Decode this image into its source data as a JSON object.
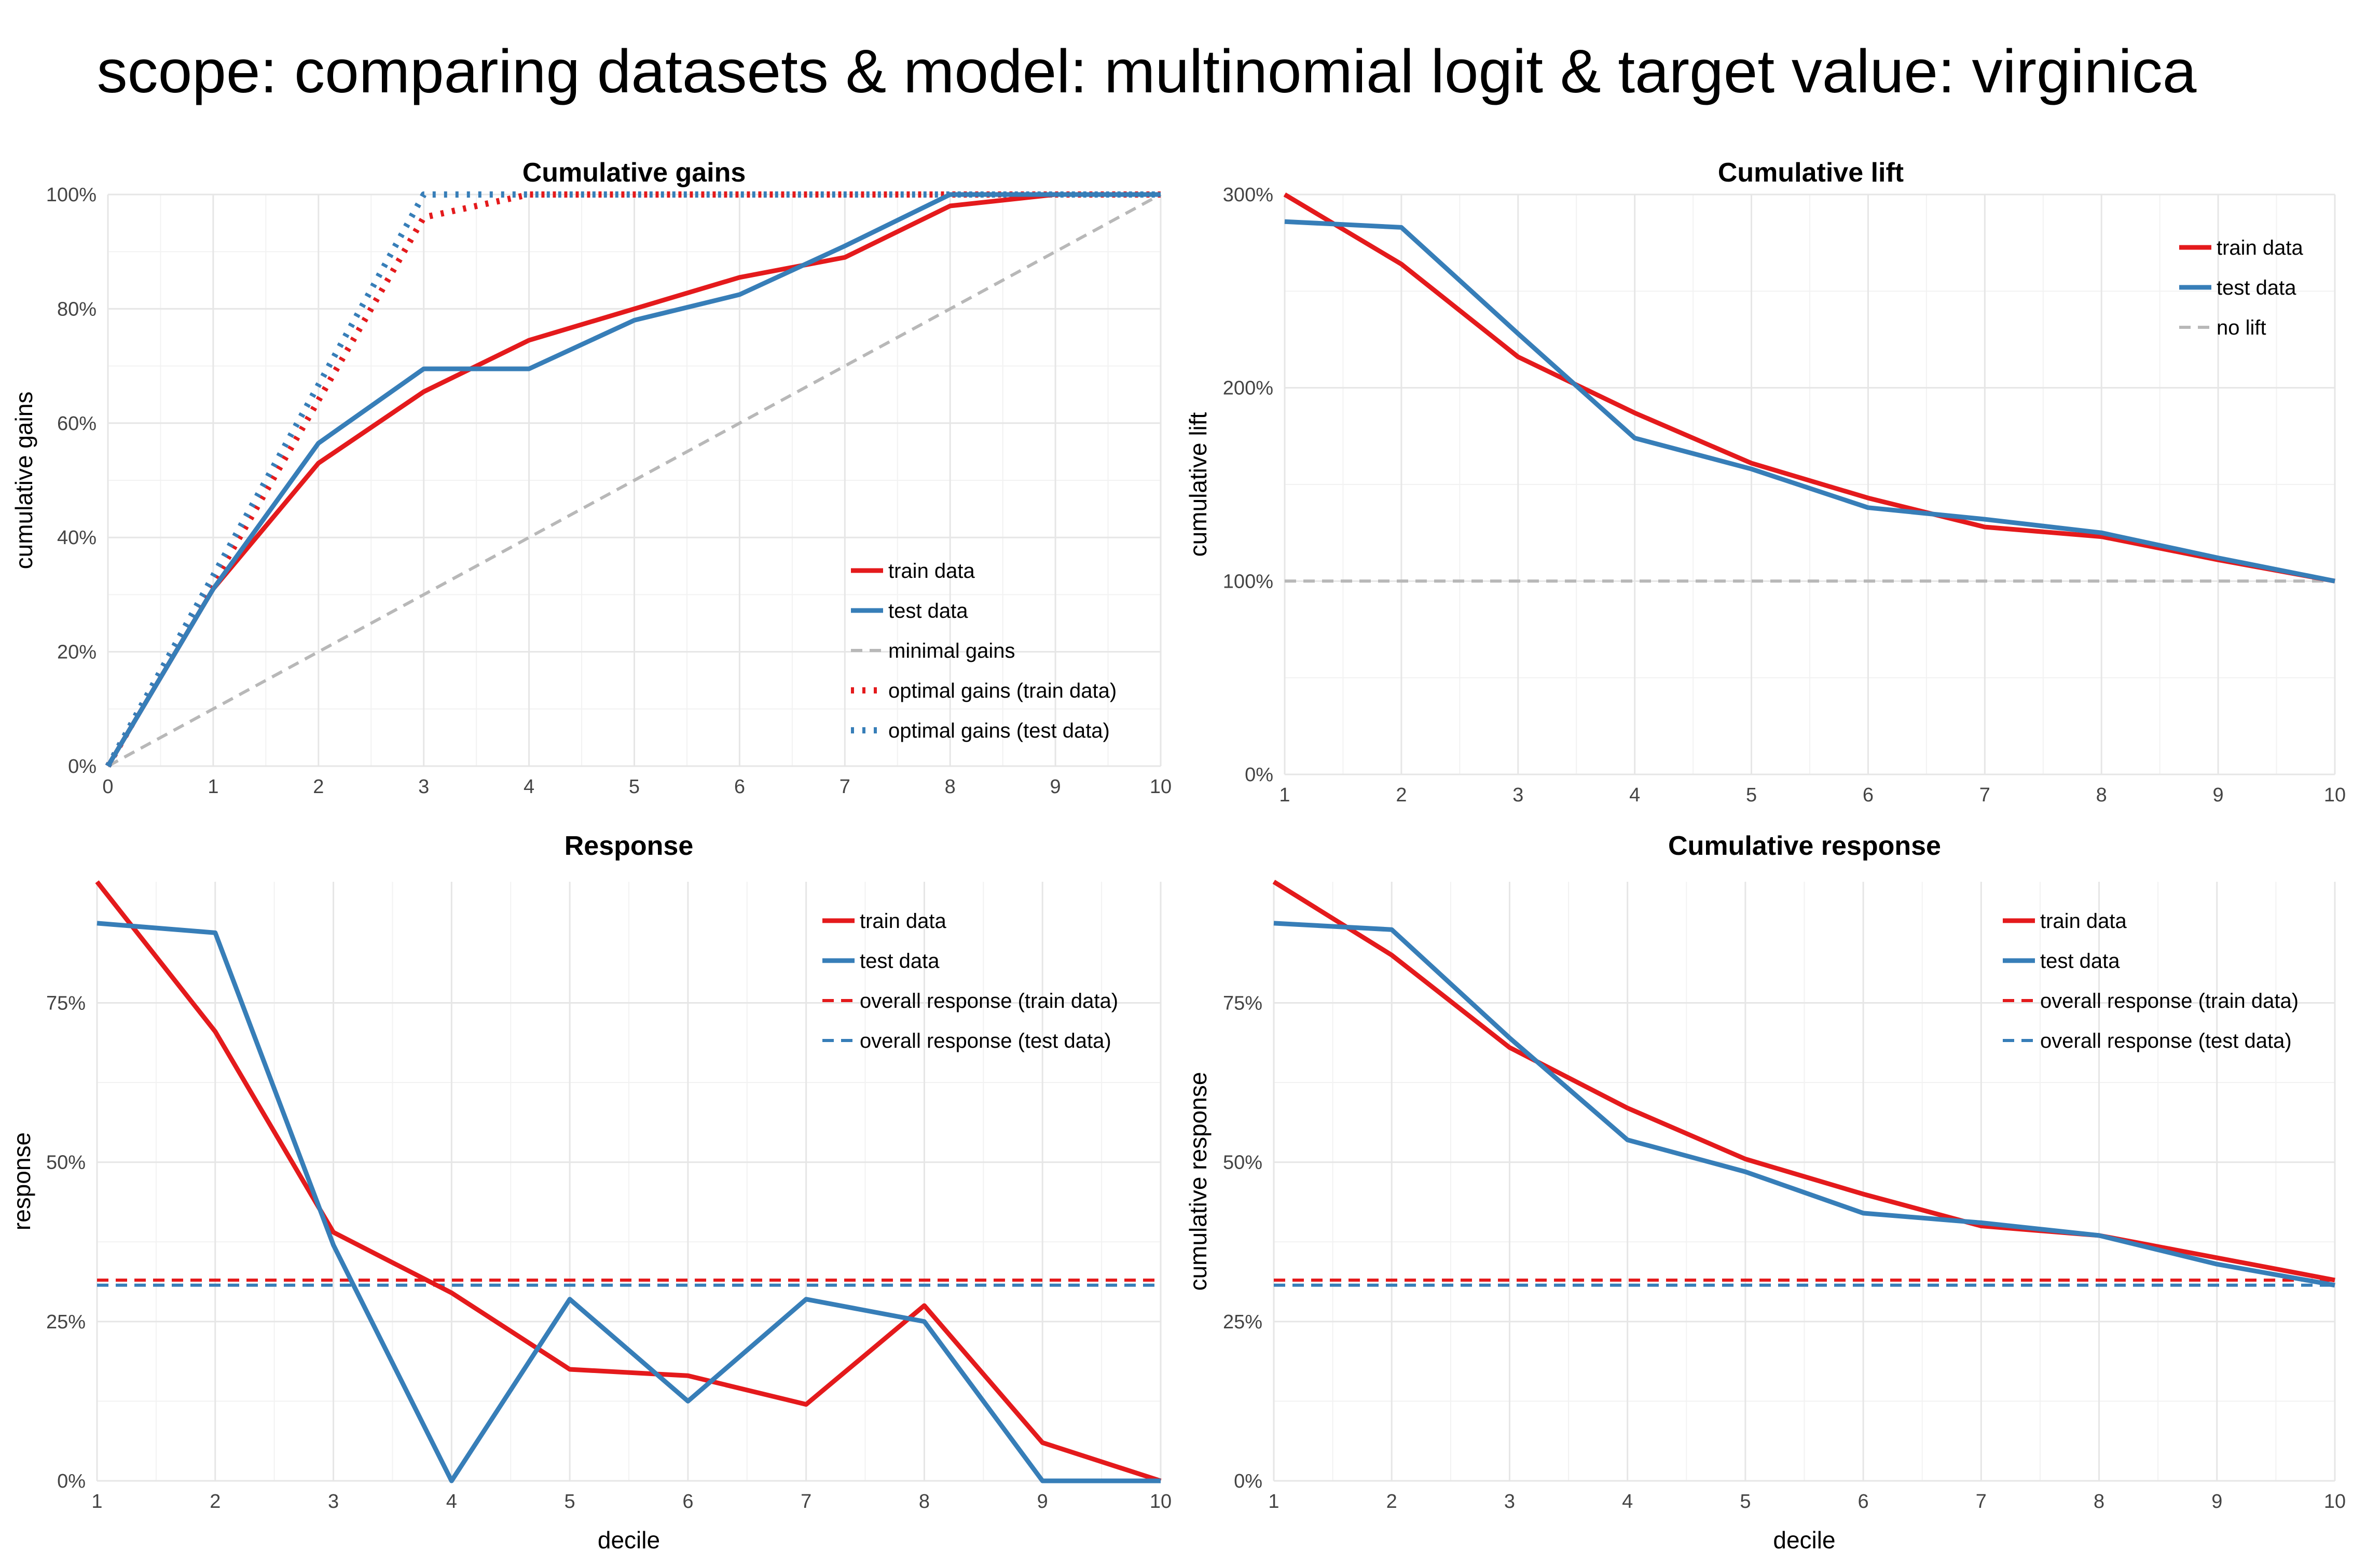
{
  "title": "scope: comparing datasets & model: multinomial logit & target value: virginica",
  "colors": {
    "train": "#e41a1c",
    "test": "#377eb8",
    "reference": "#b8b8b8"
  },
  "chart_data": [
    {
      "type": "line",
      "id": "gains",
      "title": "Cumulative gains",
      "xlabel": "",
      "ylabel": "cumulative gains",
      "xlim": [
        0,
        10
      ],
      "ylim": [
        0,
        1
      ],
      "x_ticks": [
        0,
        1,
        2,
        3,
        4,
        5,
        6,
        7,
        8,
        9,
        10
      ],
      "x_tick_labels": [
        "0",
        "1",
        "2",
        "3",
        "4",
        "5",
        "6",
        "7",
        "8",
        "9",
        "10"
      ],
      "y_ticks": [
        0,
        0.2,
        0.4,
        0.6,
        0.8,
        1.0
      ],
      "y_tick_labels": [
        "0%",
        "20%",
        "40%",
        "60%",
        "80%",
        "100%"
      ],
      "legend_position": "bottom-right",
      "series": [
        {
          "name": "train data",
          "style": "solid",
          "color": "train",
          "x": [
            0,
            1,
            2,
            3,
            4,
            5,
            6,
            7,
            8,
            9,
            10
          ],
          "y": [
            0,
            0.31,
            0.53,
            0.655,
            0.745,
            0.8,
            0.855,
            0.89,
            0.98,
            1.0,
            1.0
          ]
        },
        {
          "name": "test data",
          "style": "solid",
          "color": "test",
          "x": [
            0,
            1,
            2,
            3,
            4,
            5,
            6,
            7,
            8,
            9,
            10
          ],
          "y": [
            0,
            0.31,
            0.565,
            0.695,
            0.695,
            0.78,
            0.825,
            0.91,
            1.0,
            1.0,
            1.0
          ]
        },
        {
          "name": "minimal gains",
          "style": "dashed",
          "color": "reference",
          "x": [
            0,
            10
          ],
          "y": [
            0,
            1
          ]
        },
        {
          "name": "optimal gains (train data)",
          "style": "dotted",
          "color": "train",
          "x": [
            0,
            1,
            2,
            3,
            4,
            5,
            6,
            7,
            8,
            9,
            10
          ],
          "y": [
            0,
            0.32,
            0.64,
            0.96,
            1.0,
            1.0,
            1.0,
            1.0,
            1.0,
            1.0,
            1.0
          ]
        },
        {
          "name": "optimal gains (test data)",
          "style": "dotted",
          "color": "test",
          "x": [
            0,
            1,
            2,
            3,
            4,
            5,
            6,
            7,
            8,
            9,
            10
          ],
          "y": [
            0,
            0.333,
            0.667,
            1.0,
            1.0,
            1.0,
            1.0,
            1.0,
            1.0,
            1.0,
            1.0
          ]
        }
      ]
    },
    {
      "type": "line",
      "id": "lift",
      "title": "Cumulative lift",
      "xlabel": "",
      "ylabel": "cumulative lift",
      "xlim": [
        1,
        10
      ],
      "ylim": [
        0,
        3
      ],
      "x_ticks": [
        1,
        2,
        3,
        4,
        5,
        6,
        7,
        8,
        9,
        10
      ],
      "x_tick_labels": [
        "1",
        "2",
        "3",
        "4",
        "5",
        "6",
        "7",
        "8",
        "9",
        "10"
      ],
      "y_ticks": [
        0,
        1,
        2,
        3
      ],
      "y_tick_labels": [
        "0%",
        "100%",
        "200%",
        "300%"
      ],
      "legend_position": "top-right",
      "series": [
        {
          "name": "train data",
          "style": "solid",
          "color": "train",
          "x": [
            1,
            2,
            3,
            4,
            5,
            6,
            7,
            8,
            9,
            10
          ],
          "y": [
            3.0,
            2.64,
            2.16,
            1.87,
            1.61,
            1.43,
            1.28,
            1.23,
            1.11,
            1.0
          ]
        },
        {
          "name": "test data",
          "style": "solid",
          "color": "test",
          "x": [
            1,
            2,
            3,
            4,
            5,
            6,
            7,
            8,
            9,
            10
          ],
          "y": [
            2.86,
            2.83,
            2.28,
            1.74,
            1.58,
            1.38,
            1.32,
            1.25,
            1.12,
            1.0
          ]
        },
        {
          "name": "no lift",
          "style": "dashed",
          "color": "reference",
          "x": [
            1,
            10
          ],
          "y": [
            1,
            1
          ]
        }
      ]
    },
    {
      "type": "line",
      "id": "response",
      "title": "Response",
      "xlabel": "decile",
      "ylabel": "response",
      "xlim": [
        1,
        10
      ],
      "ylim": [
        0,
        0.94
      ],
      "x_ticks": [
        1,
        2,
        3,
        4,
        5,
        6,
        7,
        8,
        9,
        10
      ],
      "x_tick_labels": [
        "1",
        "2",
        "3",
        "4",
        "5",
        "6",
        "7",
        "8",
        "9",
        "10"
      ],
      "y_ticks": [
        0,
        0.25,
        0.5,
        0.75
      ],
      "y_tick_labels": [
        "0%",
        "25%",
        "50%",
        "75%"
      ],
      "legend_position": "top-right",
      "series": [
        {
          "name": "train data",
          "style": "solid",
          "color": "train",
          "x": [
            1,
            2,
            3,
            4,
            5,
            6,
            7,
            8,
            9,
            10
          ],
          "y": [
            0.94,
            0.705,
            0.39,
            0.295,
            0.175,
            0.165,
            0.12,
            0.275,
            0.06,
            0.0
          ]
        },
        {
          "name": "test data",
          "style": "solid",
          "color": "test",
          "x": [
            1,
            2,
            3,
            4,
            5,
            6,
            7,
            8,
            9,
            10
          ],
          "y": [
            0.875,
            0.86,
            0.37,
            0.0,
            0.285,
            0.125,
            0.285,
            0.25,
            0.0,
            0.0
          ]
        },
        {
          "name": "overall response (train data)",
          "style": "dashed",
          "color": "train",
          "x": [
            1,
            10
          ],
          "y": [
            0.315,
            0.315
          ]
        },
        {
          "name": "overall response (test data)",
          "style": "dashed",
          "color": "test",
          "x": [
            1,
            10
          ],
          "y": [
            0.307,
            0.307
          ]
        }
      ]
    },
    {
      "type": "line",
      "id": "cumresponse",
      "title": "Cumulative response",
      "xlabel": "decile",
      "ylabel": "cumulative response",
      "xlim": [
        1,
        10
      ],
      "ylim": [
        0,
        0.94
      ],
      "x_ticks": [
        1,
        2,
        3,
        4,
        5,
        6,
        7,
        8,
        9,
        10
      ],
      "x_tick_labels": [
        "1",
        "2",
        "3",
        "4",
        "5",
        "6",
        "7",
        "8",
        "9",
        "10"
      ],
      "y_ticks": [
        0,
        0.25,
        0.5,
        0.75
      ],
      "y_tick_labels": [
        "0%",
        "25%",
        "50%",
        "75%"
      ],
      "legend_position": "top-right",
      "series": [
        {
          "name": "train data",
          "style": "solid",
          "color": "train",
          "x": [
            1,
            2,
            3,
            4,
            5,
            6,
            7,
            8,
            9,
            10
          ],
          "y": [
            0.94,
            0.825,
            0.68,
            0.585,
            0.505,
            0.45,
            0.4,
            0.385,
            0.35,
            0.315
          ]
        },
        {
          "name": "test data",
          "style": "solid",
          "color": "test",
          "x": [
            1,
            2,
            3,
            4,
            5,
            6,
            7,
            8,
            9,
            10
          ],
          "y": [
            0.875,
            0.865,
            0.695,
            0.535,
            0.485,
            0.42,
            0.405,
            0.385,
            0.34,
            0.307
          ]
        },
        {
          "name": "overall response (train data)",
          "style": "dashed",
          "color": "train",
          "x": [
            1,
            10
          ],
          "y": [
            0.315,
            0.315
          ]
        },
        {
          "name": "overall response (test data)",
          "style": "dashed",
          "color": "test",
          "x": [
            1,
            10
          ],
          "y": [
            0.307,
            0.307
          ]
        }
      ]
    }
  ]
}
